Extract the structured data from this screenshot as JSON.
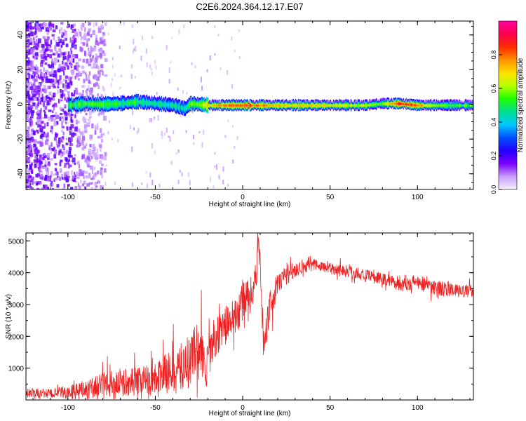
{
  "figure_title": "C2E6.2024.364.12.17.E07",
  "colors": {
    "snr_line": "#ee2222",
    "axis": "#000000",
    "colorbar_stops": [
      "#f8f0ff",
      "#c79cff",
      "#7a00ff",
      "#2400ff",
      "#0050ff",
      "#00c8ff",
      "#00e090",
      "#20ff00",
      "#b8ff00",
      "#ffe000",
      "#ff9000",
      "#ff2a00",
      "#ff0050",
      "#ff00a0"
    ]
  },
  "chart_data": [
    {
      "type": "heatmap",
      "title": "C2E6.2024.364.12.17.E07",
      "xlabel": "Height of straight line (km)",
      "ylabel": "Frequency (Hz)",
      "xlim": [
        -124,
        132
      ],
      "ylim": [
        -49,
        48
      ],
      "xticks": [
        -100,
        -50,
        0,
        50,
        100
      ],
      "yticks": [
        -40,
        -20,
        0,
        20,
        40
      ],
      "colorbar": {
        "label": "Normalized spectral amplitude",
        "range": [
          0,
          1
        ],
        "ticks": [
          0.0,
          0.2,
          0.4,
          0.6,
          0.8
        ]
      },
      "ridge": {
        "description": "narrow spectral band centered near 0 Hz from about -100 km to the right edge; scattered low-amplitude noise left of -90 km",
        "x": [
          -100,
          -90,
          -80,
          -70,
          -60,
          -50,
          -40,
          -33,
          -30,
          -25,
          -20,
          -10,
          0,
          10,
          20,
          30,
          40,
          50,
          60,
          70,
          80,
          90,
          100,
          110,
          120,
          132
        ],
        "center_hz": [
          0,
          1,
          0.5,
          1,
          2,
          1,
          0,
          -2,
          1,
          0.5,
          0,
          0,
          0,
          0,
          0,
          0,
          0,
          0,
          0,
          0,
          1,
          1,
          0,
          0,
          0,
          0
        ],
        "peak_amplitude": [
          0.5,
          0.55,
          0.55,
          0.5,
          0.5,
          0.45,
          0.45,
          0.4,
          0.55,
          0.55,
          0.7,
          0.8,
          0.85,
          0.8,
          0.75,
          0.7,
          0.7,
          0.7,
          0.65,
          0.65,
          0.6,
          0.9,
          0.8,
          0.6,
          0.55,
          0.55
        ]
      }
    },
    {
      "type": "line",
      "xlabel": "Height of straight line (km)",
      "ylabel": "SNR (10 * v/v)",
      "xlim": [
        -124,
        132
      ],
      "ylim": [
        0,
        5250
      ],
      "xticks": [
        -100,
        -50,
        0,
        50,
        100
      ],
      "yticks": [
        1000,
        2000,
        3000,
        4000,
        5000
      ],
      "series": [
        {
          "x": [
            -124,
            -110,
            -100,
            -90,
            -80,
            -70,
            -60,
            -50,
            -45,
            -40,
            -35,
            -30,
            -27,
            -24,
            -21,
            -18,
            -15,
            -12,
            -9,
            -6,
            -3,
            0,
            3,
            6,
            8,
            9,
            10,
            12,
            14,
            17,
            20,
            24,
            28,
            32,
            36,
            40,
            45,
            50,
            55,
            60,
            65,
            70,
            75,
            80,
            85,
            90,
            95,
            100,
            105,
            110,
            115,
            120,
            125,
            132
          ],
          "y": [
            220,
            200,
            250,
            320,
            450,
            550,
            600,
            700,
            800,
            900,
            1000,
            1300,
            1500,
            1600,
            800,
            1800,
            2000,
            2200,
            2400,
            2500,
            2700,
            3100,
            3300,
            3500,
            3900,
            5150,
            4200,
            1700,
            2500,
            3200,
            3600,
            3900,
            4050,
            4150,
            4250,
            4250,
            4200,
            4150,
            4100,
            4050,
            4000,
            3900,
            3850,
            3800,
            3750,
            3650,
            3700,
            3700,
            3650,
            3550,
            3500,
            3450,
            3400,
            3450
          ],
          "noise_amplitude": [
            150,
            150,
            200,
            300,
            400,
            450,
            450,
            500,
            600,
            700,
            800,
            900,
            1000,
            1000,
            700,
            700,
            600,
            600,
            600,
            600,
            600,
            600,
            500,
            500,
            500,
            300,
            600,
            500,
            600,
            500,
            400,
            350,
            300,
            250,
            250,
            200,
            200,
            200,
            200,
            200,
            200,
            200,
            200,
            200,
            200,
            250,
            250,
            250,
            250,
            250,
            250,
            200,
            200,
            200
          ]
        }
      ]
    }
  ]
}
